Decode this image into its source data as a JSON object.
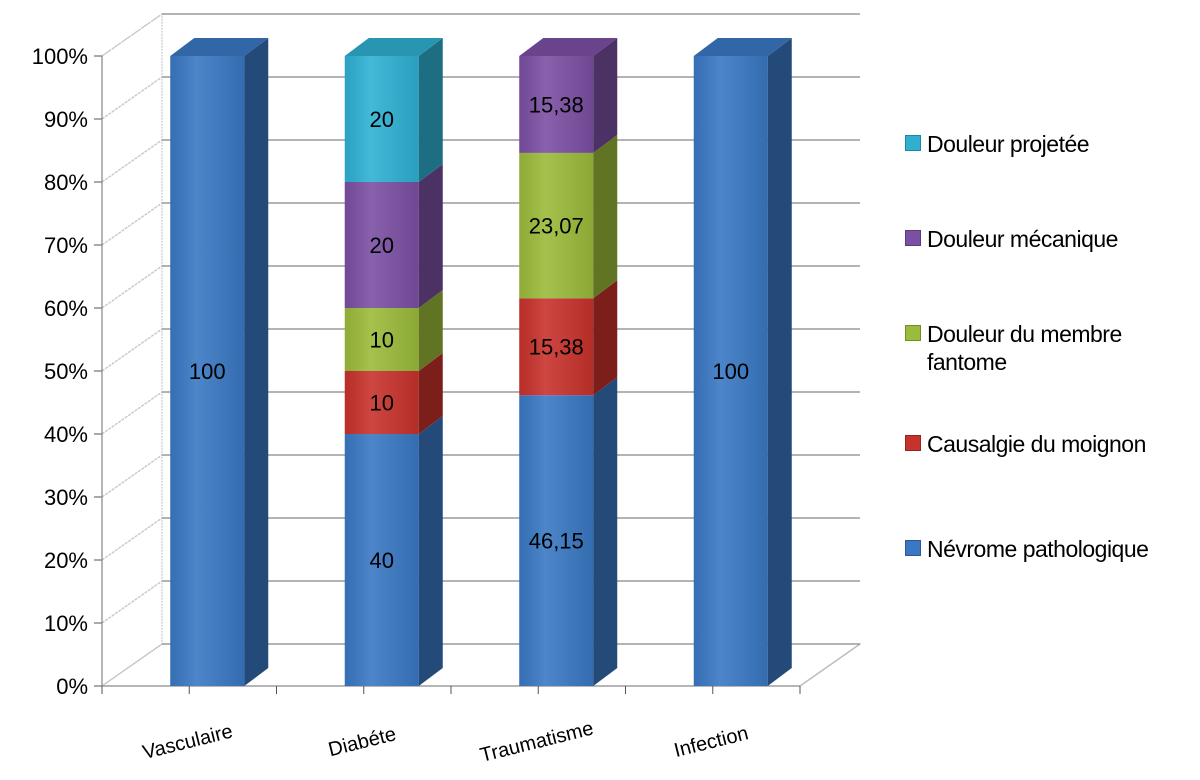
{
  "chart_data": {
    "type": "bar",
    "stacked": true,
    "percent": true,
    "three_d": true,
    "title": "",
    "xlabel": "",
    "ylabel": "",
    "ylim": [
      0,
      100
    ],
    "y_ticks": [
      "0%",
      "10%",
      "20%",
      "30%",
      "40%",
      "50%",
      "60%",
      "70%",
      "80%",
      "90%",
      "100%"
    ],
    "grid": true,
    "legend_position": "right",
    "categories": [
      "Vasculaire",
      "Diabéte",
      "Traumatisme",
      "Infection"
    ],
    "series": [
      {
        "name": "Névrome pathologique",
        "color": "#3a78c4",
        "values": [
          100,
          40,
          46.15,
          100
        ],
        "labels": [
          "100",
          "40",
          "46,15",
          "100"
        ]
      },
      {
        "name": "Causalgie du moignon",
        "color": "#c8322c",
        "values": [
          null,
          10,
          15.38,
          null
        ],
        "labels": [
          "",
          "10",
          "15,38",
          ""
        ]
      },
      {
        "name": "Douleur du membre fantome",
        "color": "#9bbb3a",
        "values": [
          null,
          10,
          23.07,
          null
        ],
        "labels": [
          "",
          "10",
          "23,07",
          ""
        ]
      },
      {
        "name": "Douleur mécanique",
        "color": "#7b4fa3",
        "values": [
          null,
          20,
          15.38,
          null
        ],
        "labels": [
          "",
          "20",
          "15,38",
          ""
        ]
      },
      {
        "name": "Douleur projetée",
        "color": "#2fb0d3",
        "values": [
          null,
          20,
          null,
          null
        ],
        "labels": [
          "",
          "20",
          "",
          ""
        ]
      }
    ]
  }
}
